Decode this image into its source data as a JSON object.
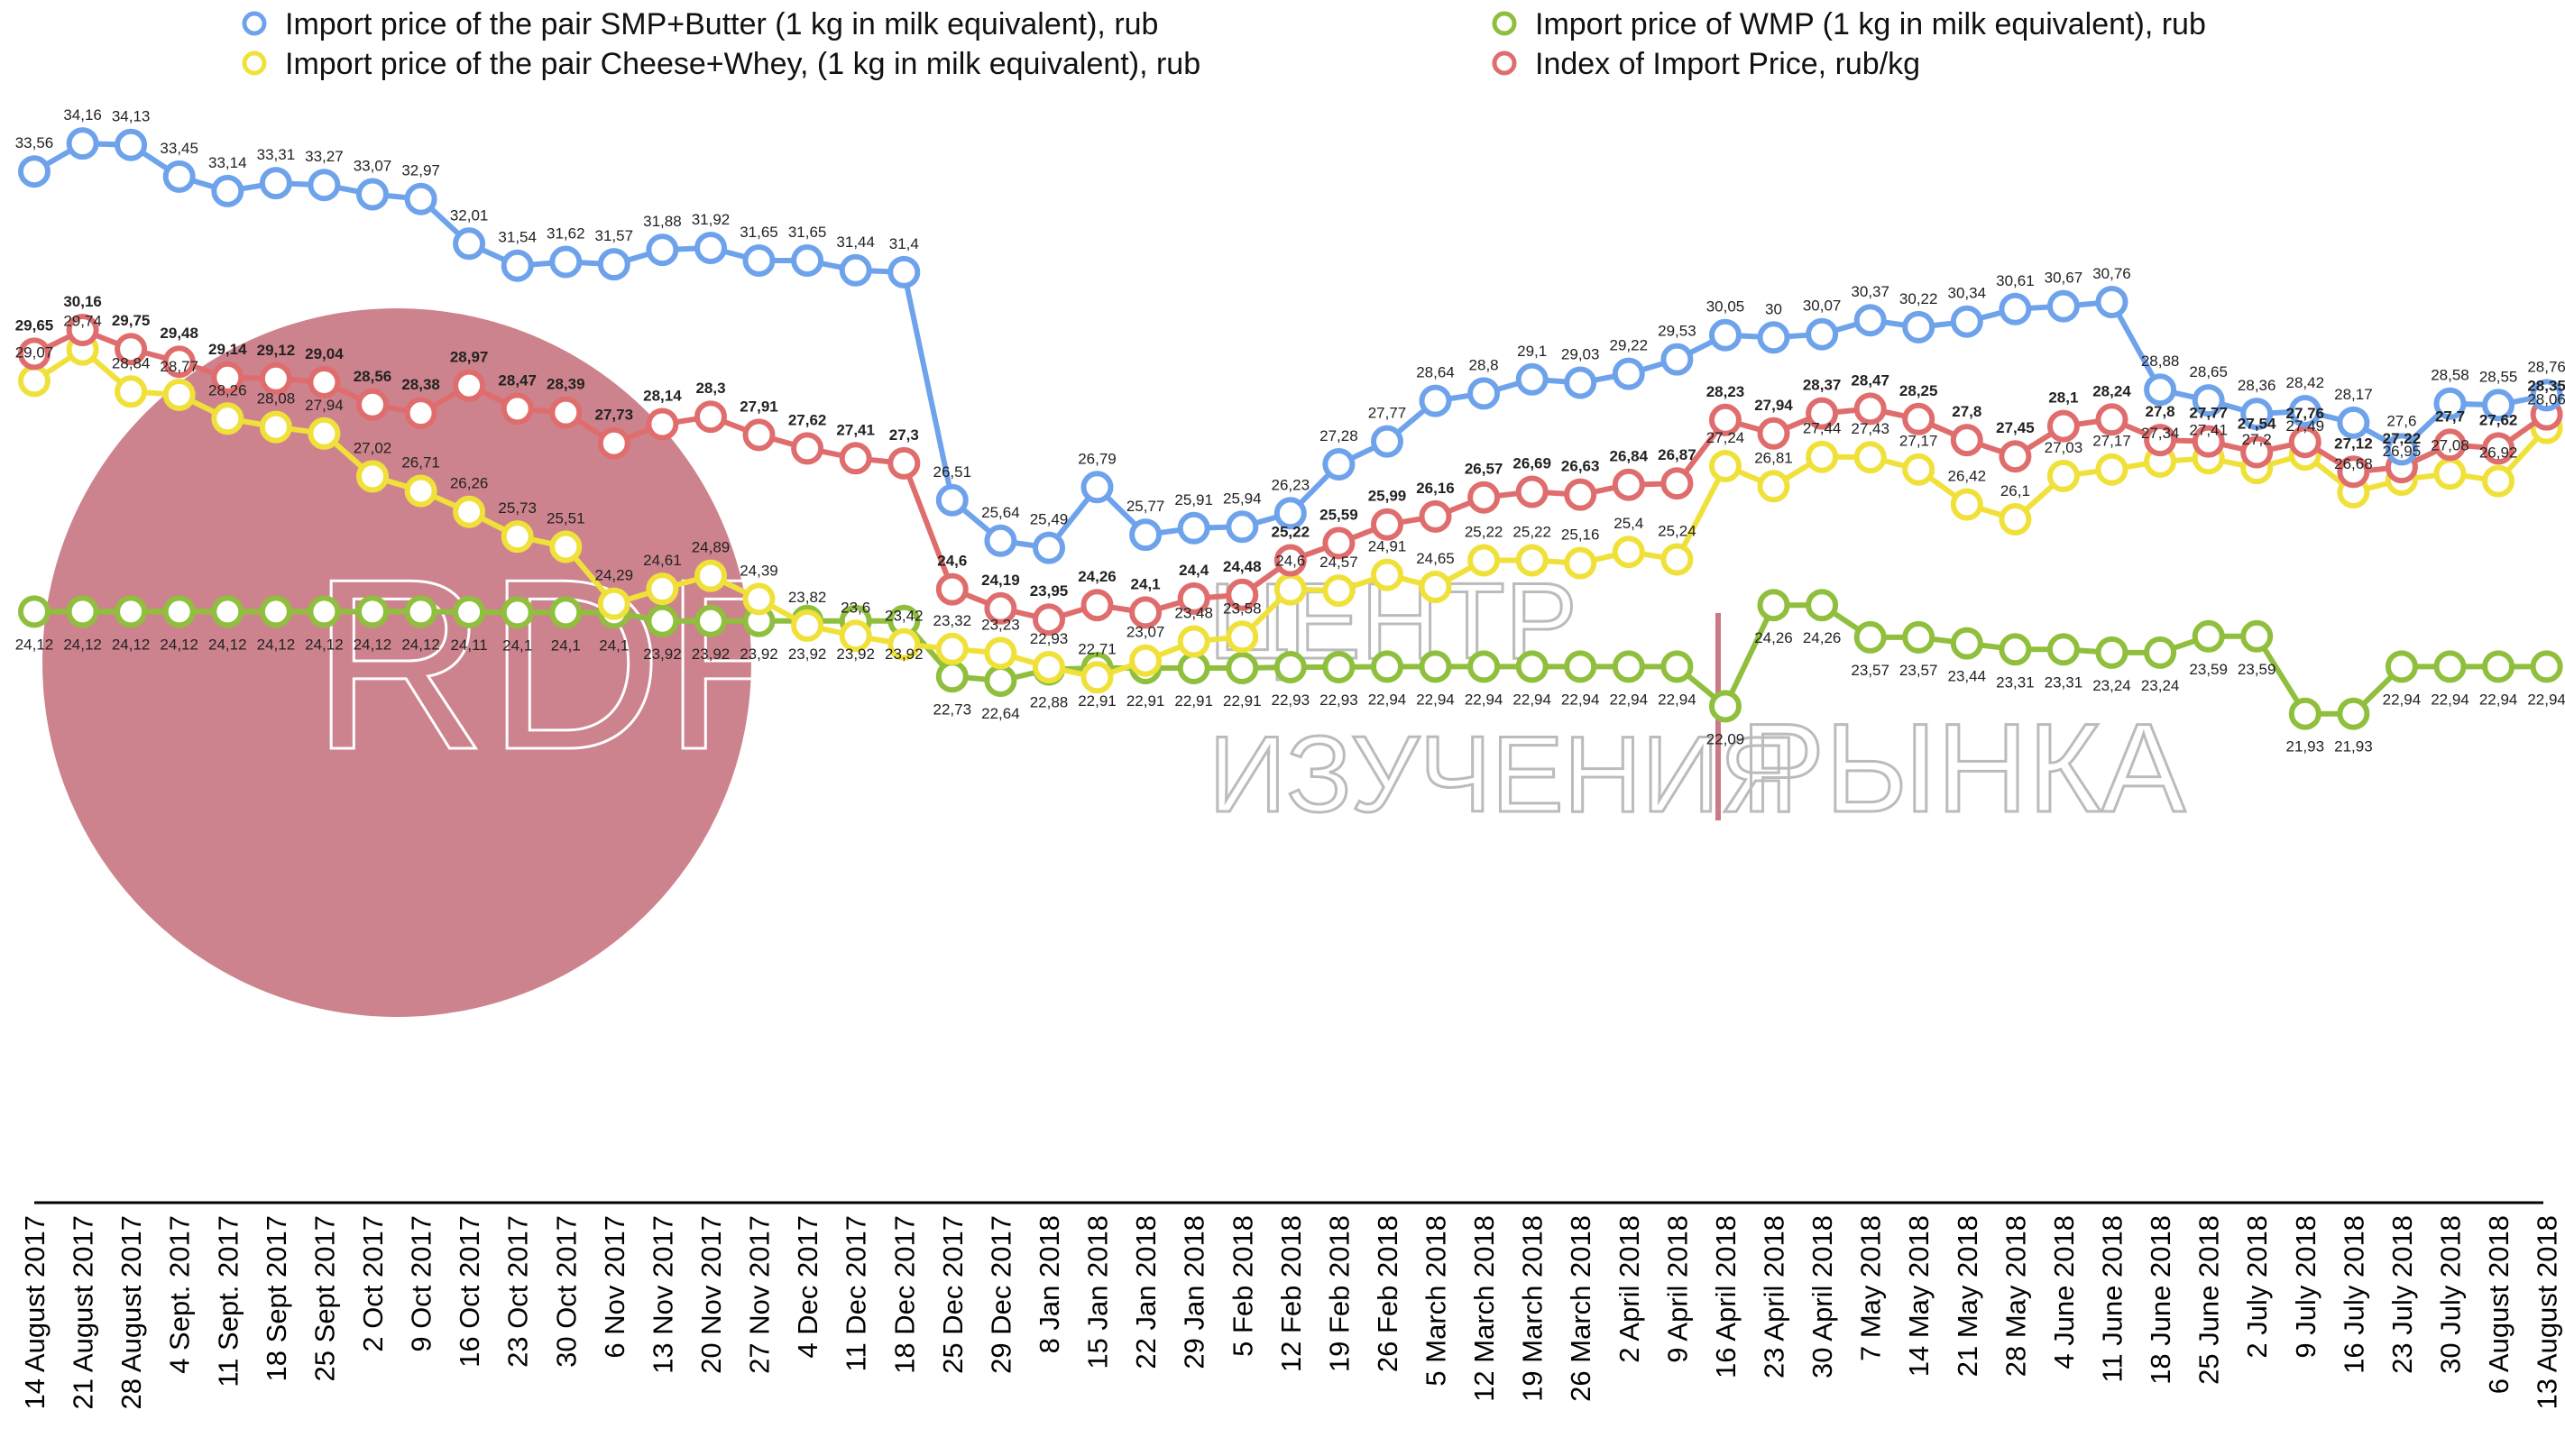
{
  "chart_data": {
    "type": "line",
    "title": "",
    "xlabel": "",
    "ylabel": "",
    "ylim": [
      20,
      36
    ],
    "grid": false,
    "legend_position": "top",
    "x": [
      "14 August 2017",
      "21 August 2017",
      "28 August 2017",
      "4 Sept. 2017",
      "11 Sept. 2017",
      "18 Sept 2017",
      "25 Sept 2017",
      "2 Oct 2017",
      "9 Oct 2017",
      "16 Oct 2017",
      "23 Oct 2017",
      "30 Oct 2017",
      "6 Nov 2017",
      "13 Nov 2017",
      "20 Nov 2017",
      "27 Nov 2017",
      "4 Dec 2017",
      "11 Dec 2017",
      "18 Dec 2017",
      "25 Dec 2017",
      "29 Dec 2017",
      "8 Jan 2018",
      "15 Jan 2018",
      "22 Jan 2018",
      "29 Jan 2018",
      "5 Feb 2018",
      "12 Feb 2018",
      "19 Feb 2018",
      "26 Feb 2018",
      "5 March 2018",
      "12 March 2018",
      "19 March 2018",
      "26 March 2018",
      "2 April 2018",
      "9 April 2018",
      "16 April 2018",
      "23 April 2018",
      "30 April 2018",
      "7 May 2018",
      "14 May 2018",
      "21 May 2018",
      "28 May 2018",
      "4 June 2018",
      "11 June 2018",
      "18 June 2018",
      "25 June 2018",
      "2 July 2018",
      "9 July 2018",
      "16 July 2018",
      "23 July 2018",
      "30 July 2018",
      "6 August 2018",
      "13 August 2018"
    ],
    "series": [
      {
        "name": "Import price of the pair SMP+Butter (1 kg in milk equivalent), rub",
        "color": "#6ea3ec",
        "label_bold": false,
        "values": [
          33.56,
          34.16,
          34.13,
          33.45,
          33.14,
          33.31,
          33.27,
          33.07,
          32.97,
          32.01,
          31.54,
          31.62,
          31.57,
          31.88,
          31.92,
          31.65,
          31.65,
          31.44,
          31.4,
          26.51,
          25.64,
          25.49,
          26.79,
          25.77,
          25.91,
          25.94,
          26.23,
          27.28,
          27.77,
          28.64,
          28.8,
          29.1,
          29.03,
          29.22,
          29.53,
          30.05,
          30,
          30.07,
          30.37,
          30.22,
          30.34,
          30.61,
          30.67,
          30.76,
          28.88,
          28.65,
          28.36,
          28.42,
          28.17,
          27.6,
          28.58,
          28.55,
          28.76
        ],
        "labels": [
          "33,56",
          "34,16",
          "34,13",
          "33,45",
          "33,14",
          "33,31",
          "33,27",
          "33,07",
          "32,97",
          "32,01",
          "31,54",
          "31,62",
          "31,57",
          "31,88",
          "31,92",
          "31,65",
          "31,65",
          "31,44",
          "31,4",
          "26,51",
          "25,64",
          "25,49",
          "26,79",
          "25,77",
          "25,91",
          "25,94",
          "26,23",
          "27,28",
          "27,77",
          "28,64",
          "28,8",
          "29,1",
          "29,03",
          "29,22",
          "29,53",
          "30,05",
          "30",
          "30,07",
          "30,37",
          "30,22",
          "30,34",
          "30,61",
          "30,67",
          "30,76",
          "28,88",
          "28,65",
          "28,36",
          "28,42",
          "28,17",
          "27,6",
          "28,58",
          "28,55",
          "28,76"
        ]
      },
      {
        "name": "Import price of the pair Cheese+Whey,  (1 kg in milk equivalent), rub",
        "color": "#f0e13a",
        "label_bold": false,
        "values": [
          29.07,
          29.74,
          28.84,
          28.77,
          28.26,
          28.08,
          27.94,
          27.02,
          26.71,
          26.26,
          25.73,
          25.51,
          24.29,
          24.61,
          24.89,
          24.39,
          23.82,
          23.6,
          23.42,
          23.32,
          23.23,
          22.93,
          22.71,
          23.07,
          23.48,
          23.58,
          24.6,
          24.57,
          24.91,
          24.65,
          25.22,
          25.22,
          25.16,
          25.4,
          25.24,
          27.24,
          26.81,
          27.44,
          27.43,
          27.17,
          26.42,
          26.1,
          27.03,
          27.17,
          27.34,
          27.41,
          27.2,
          27.49,
          26.68,
          26.95,
          27.08,
          26.92,
          28.06
        ],
        "labels": [
          "29,07",
          "29,74",
          "28,84",
          "28,77",
          "28,26",
          "28,08",
          "27,94",
          "27,02",
          "26,71",
          "26,26",
          "25,73",
          "25,51",
          "24,29",
          "24,61",
          "24,89",
          "24,39",
          "23,82",
          "23,6",
          "23,42",
          "23,32",
          "23,23",
          "22,93",
          "22,71",
          "23,07",
          "23,48",
          "23,58",
          "24,6",
          "24,57",
          "24,91",
          "24,65",
          "25,22",
          "25,22",
          "25,16",
          "25,4",
          "25,24",
          "27,24",
          "26,81",
          "27,44",
          "27,43",
          "27,17",
          "26,42",
          "26,1",
          "27,03",
          "27,17",
          "27,34",
          "27,41",
          "27,2",
          "27,49",
          "26,68",
          "26,95",
          "27,08",
          "26,92",
          "28,06"
        ]
      },
      {
        "name": "Import price of WMP (1 kg in milk equivalent), rub",
        "color": "#8fbf3d",
        "label_bold": false,
        "values": [
          24.12,
          24.12,
          24.12,
          24.12,
          24.12,
          24.12,
          24.12,
          24.12,
          24.12,
          24.11,
          24.1,
          24.1,
          24.1,
          23.92,
          23.92,
          23.92,
          23.92,
          23.92,
          23.92,
          22.73,
          22.64,
          22.88,
          22.91,
          22.91,
          22.91,
          22.91,
          22.93,
          22.93,
          22.94,
          22.94,
          22.94,
          22.94,
          22.94,
          22.94,
          22.94,
          22.09,
          24.26,
          24.26,
          23.57,
          23.57,
          23.44,
          23.31,
          23.31,
          23.24,
          23.24,
          23.59,
          23.59,
          21.93,
          21.93,
          22.94,
          22.94,
          22.94,
          22.94
        ],
        "labels": [
          "24,12",
          "24,12",
          "24,12",
          "24,12",
          "24,12",
          "24,12",
          "24,12",
          "24,12",
          "24,12",
          "24,11",
          "24,1",
          "24,1",
          "24,1",
          "23,92",
          "23,92",
          "23,92",
          "23,92",
          "23,92",
          "23,92",
          "22,73",
          "22,64",
          "22,88",
          "22,91",
          "22,91",
          "22,91",
          "22,91",
          "22,93",
          "22,93",
          "22,94",
          "22,94",
          "22,94",
          "22,94",
          "22,94",
          "22,94",
          "22,94",
          "22,09",
          "24,26",
          "24,26",
          "23,57",
          "23,57",
          "23,44",
          "23,31",
          "23,31",
          "23,24",
          "23,24",
          "23,59",
          "23,59",
          "21,93",
          "21,93",
          "22,94",
          "22,94",
          "22,94",
          "22,94"
        ]
      },
      {
        "name": "Index of Import Price, rub/kg",
        "color": "#e06d6d",
        "label_bold": true,
        "values": [
          29.65,
          30.16,
          29.75,
          29.48,
          29.14,
          29.12,
          29.04,
          28.56,
          28.38,
          28.97,
          28.47,
          28.39,
          27.73,
          28.14,
          28.3,
          27.91,
          27.62,
          27.41,
          27.3,
          24.6,
          24.19,
          23.95,
          24.26,
          24.1,
          24.4,
          24.48,
          25.22,
          25.59,
          25.99,
          26.16,
          26.57,
          26.69,
          26.63,
          26.84,
          26.87,
          28.23,
          27.94,
          28.37,
          28.47,
          28.25,
          27.8,
          27.45,
          28.1,
          28.24,
          27.8,
          27.77,
          27.54,
          27.76,
          27.12,
          27.22,
          27.7,
          27.62,
          28.35
        ],
        "labels": [
          "29,65",
          "30,16",
          "29,75",
          "29,48",
          "29,14",
          "29,12",
          "29,04",
          "28,56",
          "28,38",
          "28,97",
          "28,47",
          "28,39",
          "27,73",
          "28,14",
          "28,3",
          "27,91",
          "27,62",
          "27,41",
          "27,3",
          "24,6",
          "24,19",
          "23,95",
          "24,26",
          "24,1",
          "24,4",
          "24,48",
          "25,22",
          "25,59",
          "25,99",
          "26,16",
          "26,57",
          "26,69",
          "26,63",
          "26,84",
          "26,87",
          "28,23",
          "27,94",
          "28,37",
          "28,47",
          "28,25",
          "27,8",
          "27,45",
          "28,1",
          "28,24",
          "27,8",
          "27,77",
          "27,54",
          "27,76",
          "27,12",
          "27,22",
          "27,7",
          "27,62",
          "28,35"
        ]
      }
    ]
  },
  "watermark": {
    "latin": "RDRC",
    "line1": "ЦЕНТР",
    "line2": "ИЗУЧЕНИЯ",
    "line3": "РЫНКА",
    "circle_color": "#c97a84"
  }
}
